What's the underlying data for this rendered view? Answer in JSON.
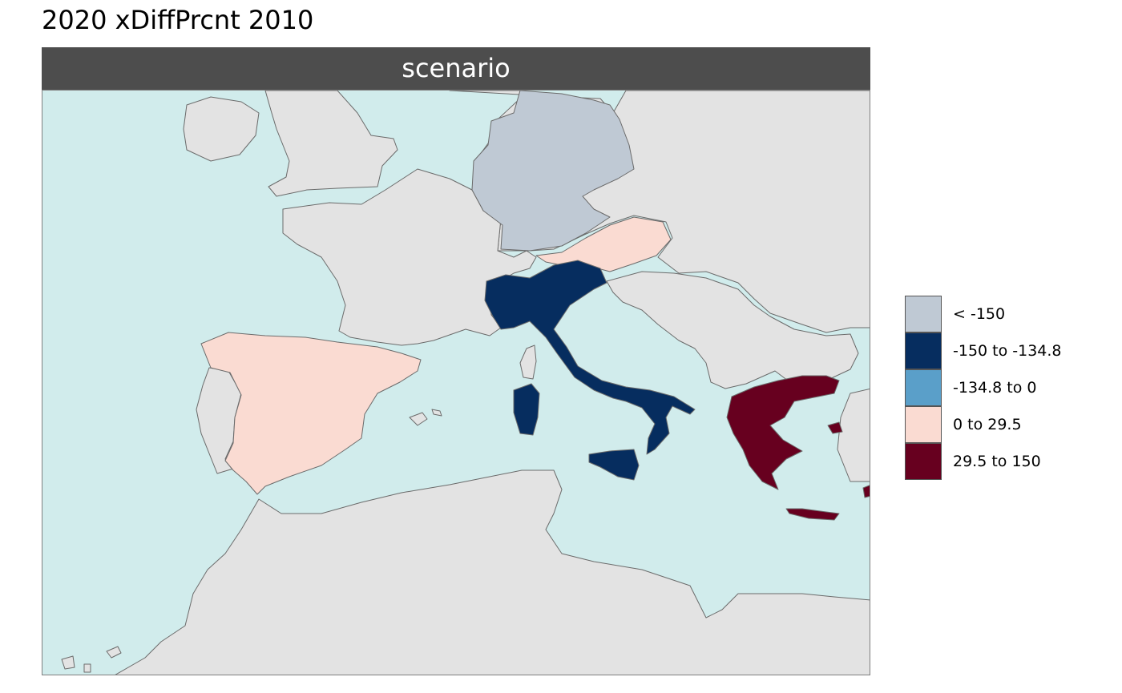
{
  "title": "2020 xDiffPrcnt 2010",
  "facet": {
    "label": "scenario"
  },
  "colors": {
    "sea": "#d1ecec",
    "other_land": "#e3e3e3",
    "border": "#6b6b6b"
  },
  "legend": {
    "items": [
      {
        "label": "< -150",
        "color": "#bfc9d4"
      },
      {
        "label": "-150 to -134.8",
        "color": "#062d5f"
      },
      {
        "label": "-134.8 to 0",
        "color": "#5a9fc9"
      },
      {
        "label": "0 to 29.5",
        "color": "#fadbd2"
      },
      {
        "label": "29.5 to 150",
        "color": "#67001f"
      }
    ]
  },
  "regions": [
    {
      "name": "Germany",
      "class": "< -150"
    },
    {
      "name": "Italy",
      "class": "-150 to -134.8"
    },
    {
      "name": "Spain",
      "class": "0 to 29.5"
    },
    {
      "name": "Austria",
      "class": "0 to 29.5"
    },
    {
      "name": "Greece",
      "class": "29.5 to 150"
    }
  ]
}
